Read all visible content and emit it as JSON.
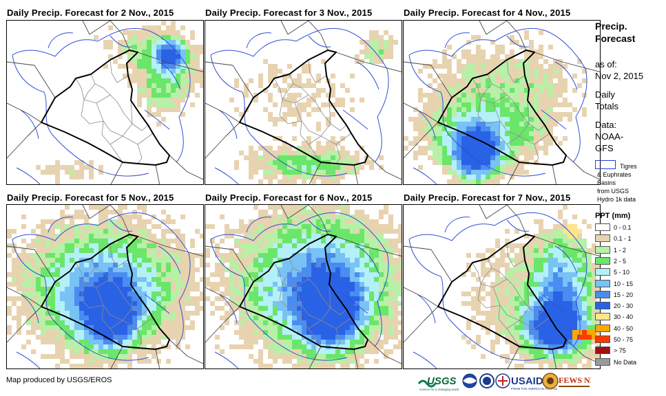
{
  "panels": [
    {
      "title": "Daily Precip. Forecast for 2 Nov., 2015",
      "pattern": "northeast"
    },
    {
      "title": "Daily Precip. Forecast for 3 Nov., 2015",
      "pattern": "south-band"
    },
    {
      "title": "Daily Precip. Forecast for 4 Nov., 2015",
      "pattern": "southwest-heavy"
    },
    {
      "title": "Daily Precip. Forecast for 5 Nov., 2015",
      "pattern": "widespread"
    },
    {
      "title": "Daily Precip. Forecast for 6 Nov., 2015",
      "pattern": "central-east"
    },
    {
      "title": "Daily Precip. Forecast for 7 Nov., 2015",
      "pattern": "southeast-extreme"
    }
  ],
  "side": {
    "title_line1": "Precip.",
    "title_line2": "Forecast",
    "asof_label": "as of:",
    "asof_date": "Nov 2, 2015",
    "totals_line1": "Daily",
    "totals_line2": "Totals",
    "data_line1": "Data:",
    "data_line2": "NOAA-",
    "data_line3": "GFS",
    "basin_line1": "Tigres",
    "basin_line2": "& Euphrates",
    "basin_line3": "Basins",
    "basin_line4": "from USGS",
    "basin_line5": "Hydro 1k data"
  },
  "legend": {
    "title": "PPT (mm)",
    "items": [
      {
        "label": "0 - 0.1",
        "color": "#ffffff"
      },
      {
        "label": "0.1 - 1",
        "color": "#e8d3b0"
      },
      {
        "label": "1 - 2",
        "color": "#b8f0a8"
      },
      {
        "label": "2 - 5",
        "color": "#6ae66a"
      },
      {
        "label": "5 - 10",
        "color": "#b4f0f8"
      },
      {
        "label": "10 - 15",
        "color": "#78c2f5"
      },
      {
        "label": "15 - 20",
        "color": "#4a8cf0"
      },
      {
        "label": "20 - 30",
        "color": "#2a62e6"
      },
      {
        "label": "30 - 40",
        "color": "#ffe68a"
      },
      {
        "label": "40 - 50",
        "color": "#ffa800"
      },
      {
        "label": "50 - 75",
        "color": "#ff3a00"
      },
      {
        "label": "> 75",
        "color": "#a01010"
      },
      {
        "label": "No Data",
        "color": "#999999"
      }
    ]
  },
  "footer": {
    "credit": "Map produced by USGS/EROS"
  },
  "logos": {
    "usgs": "USGS",
    "usgs_tagline": "science for a changing world",
    "usaid": "USAID",
    "usaid_tagline": "FROM THE AMERICAN PEOPLE",
    "fewsnet": "FEWS NET"
  }
}
